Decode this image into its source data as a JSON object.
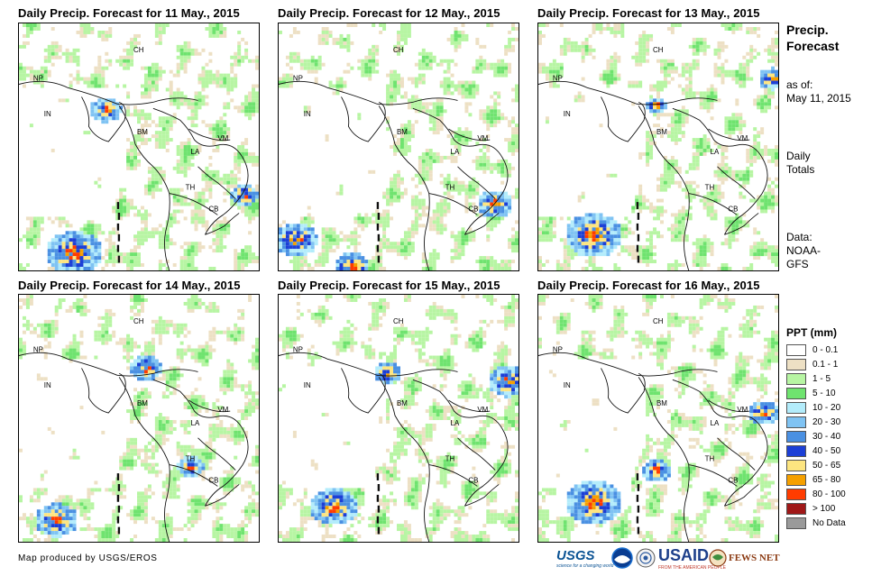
{
  "panels": [
    {
      "title": "Daily Precip. Forecast for 11 May., 2015"
    },
    {
      "title": "Daily Precip. Forecast for 12 May., 2015"
    },
    {
      "title": "Daily Precip. Forecast for 13 May., 2015"
    },
    {
      "title": "Daily Precip. Forecast for 14 May., 2015"
    },
    {
      "title": "Daily Precip. Forecast for 15 May., 2015"
    },
    {
      "title": "Daily Precip. Forecast for 16 May., 2015"
    }
  ],
  "country_labels": [
    "CH",
    "NP",
    "IN",
    "BM",
    "LA",
    "VM",
    "TH",
    "CB"
  ],
  "side": {
    "title_line1": "Precip.",
    "title_line2": "Forecast",
    "asof_line1": "as of:",
    "asof_line2": "May 11, 2015",
    "daily_line1": "Daily",
    "daily_line2": "Totals",
    "data_line1": "Data:",
    "data_line2": "NOAA-",
    "data_line3": "GFS"
  },
  "legend": {
    "title": "PPT (mm)",
    "items": [
      {
        "label": "0 - 0.1",
        "color": "#ffffff"
      },
      {
        "label": "0.1 - 1",
        "color": "#ede0c4"
      },
      {
        "label": "1 - 5",
        "color": "#b7f5a3"
      },
      {
        "label": "5 - 10",
        "color": "#6fe36f"
      },
      {
        "label": "10 - 20",
        "color": "#b3ecfb"
      },
      {
        "label": "20 - 30",
        "color": "#7fc3f3"
      },
      {
        "label": "30 - 40",
        "color": "#4a90e2"
      },
      {
        "label": "40 - 50",
        "color": "#1c3fd6"
      },
      {
        "label": "50 - 65",
        "color": "#fde580"
      },
      {
        "label": "65 - 80",
        "color": "#f5a000"
      },
      {
        "label": "80 - 100",
        "color": "#ff3c00"
      },
      {
        "label": "> 100",
        "color": "#a01818"
      },
      {
        "label": "No Data",
        "color": "#9a9a9a"
      }
    ]
  },
  "credit": "Map produced by USGS/EROS",
  "logos": {
    "usgs": "USGS",
    "usgs_tag": "science for a changing world",
    "usaid": "USAID",
    "usaid_tag": "FROM THE AMERICAN PEOPLE",
    "fews": "FEWS NET"
  }
}
